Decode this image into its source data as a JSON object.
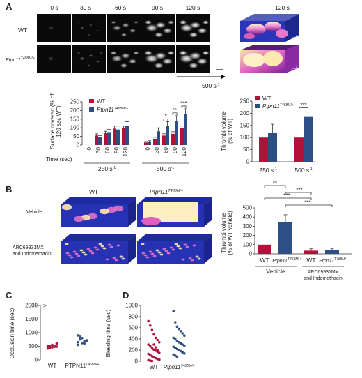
{
  "panels": {
    "A": {
      "letter": "A",
      "time_labels": [
        "0 s",
        "30 s",
        "60 s",
        "90 s",
        "120 s"
      ],
      "render_label": "120 s",
      "row_labels": [
        "WT",
        "Ptpn11"
      ],
      "row_label_sup": "T468M/+",
      "shear_label": "500 s",
      "shear_sup": "-1"
    },
    "B": {
      "letter": "B",
      "col_labels": [
        "WT",
        "Ptpn11"
      ],
      "col_label_sup": "T468M/+",
      "row_labels": [
        "Vehicle",
        "ARC69931MX",
        "and Indomethacin"
      ]
    },
    "C": {
      "letter": "C"
    },
    "D": {
      "letter": "D"
    }
  },
  "colors": {
    "wt": "#b0123a",
    "mut": "#2d4f86"
  },
  "chart_data": [
    {
      "id": "A-surface",
      "type": "bar",
      "ylabel": "Surface covered (% of 120 sec WT)",
      "ylabel_lines": [
        "Surface covered (% of",
        "120 sec WT)"
      ],
      "xlabel": "Time (sec)",
      "ylim": [
        0,
        250
      ],
      "yticks": [
        0,
        50,
        100,
        150,
        200,
        250
      ],
      "groups": [
        {
          "label": "250 s",
          "label_sup": "-1",
          "categories": [
            "0",
            "30",
            "60",
            "90",
            "120"
          ],
          "wt": [
            0,
            55,
            68,
            95,
            100
          ],
          "mut": [
            0,
            45,
            75,
            90,
            110
          ],
          "wt_err": [
            0,
            10,
            12,
            15,
            10
          ],
          "mut_err": [
            0,
            10,
            15,
            20,
            25
          ]
        },
        {
          "label": "500 s",
          "label_sup": "-1",
          "categories": [
            "0",
            "30",
            "60",
            "90",
            "120"
          ],
          "wt": [
            15,
            35,
            55,
            65,
            100
          ],
          "mut": [
            20,
            80,
            110,
            140,
            180
          ],
          "wt_err": [
            5,
            10,
            10,
            12,
            10
          ],
          "mut_err": [
            5,
            20,
            25,
            30,
            30
          ]
        }
      ],
      "legend": [
        "WT",
        "Ptpn11"
      ],
      "legend_sup": "T468M/+",
      "annotations": [
        "*",
        "**",
        "***"
      ]
    },
    {
      "id": "A-volume",
      "type": "bar",
      "ylabel": "Thrombi volume (% of WT)",
      "ylabel_lines": [
        "Thrombi volume",
        "(% of WT)"
      ],
      "ylim": [
        0,
        250
      ],
      "yticks": [
        0,
        50,
        100,
        150,
        200,
        250
      ],
      "categories": [
        "250 s",
        "500 s"
      ],
      "category_sup": "-1",
      "wt": [
        100,
        100
      ],
      "mut": [
        120,
        185
      ],
      "wt_err": [
        0,
        0
      ],
      "mut_err": [
        35,
        20
      ],
      "legend": [
        "WT",
        "Ptpn11"
      ],
      "legend_sup": "T468M/+",
      "annotations": [
        "***"
      ]
    },
    {
      "id": "B-volume",
      "type": "bar",
      "ylabel": "Thrombi volume (% of WT vehicle)",
      "ylabel_lines": [
        "Thrombi volume",
        "(% of WT vehicle)"
      ],
      "ylim": [
        0,
        500
      ],
      "yticks": [
        0,
        100,
        200,
        300,
        400,
        500
      ],
      "categories": [
        "WT",
        "Ptpn11",
        "WT",
        "Ptpn11"
      ],
      "category_sup": "T468M/+",
      "values": [
        100,
        345,
        35,
        40
      ],
      "errors": [
        0,
        80,
        20,
        20
      ],
      "group_labels": [
        "Vehicle",
        "ARC69931MX",
        "and Indomethacin"
      ],
      "annotations": [
        "**",
        "***",
        "***",
        "***"
      ]
    },
    {
      "id": "C-occlusion",
      "type": "scatter",
      "ylabel": "Occlusion time (sec)",
      "ylim": [
        0,
        2000
      ],
      "yticks": [
        0,
        500,
        1000,
        1500,
        2000
      ],
      "categories": [
        "WT",
        "PTPN11"
      ],
      "category_sup": "T468N/+",
      "top_marker": ">",
      "wt": [
        500,
        450,
        550,
        480,
        600,
        420,
        520,
        460,
        510,
        490
      ],
      "mut": [
        650,
        750,
        800,
        600,
        700,
        550,
        850,
        620,
        680,
        720,
        900
      ]
    },
    {
      "id": "D-bleeding",
      "type": "scatter",
      "ylabel": "Bleeding time (sec)",
      "ylim": [
        0,
        1000
      ],
      "yticks": [
        0,
        200,
        400,
        600,
        800,
        1000
      ],
      "categories": [
        "WT",
        "Ptpn11"
      ],
      "category_sup": "T468M/+",
      "wt": [
        720,
        640,
        560,
        480,
        420,
        380,
        340,
        300,
        270,
        240,
        210,
        190,
        170,
        150,
        130,
        110,
        90,
        70,
        55,
        40,
        30,
        20,
        10,
        5,
        300,
        250,
        200
      ],
      "mut": [
        900,
        700,
        620,
        580,
        540,
        500,
        460,
        420,
        400,
        360,
        340,
        320,
        300,
        280,
        260,
        240,
        220,
        200,
        180,
        160,
        140,
        120,
        100,
        80
      ]
    }
  ]
}
